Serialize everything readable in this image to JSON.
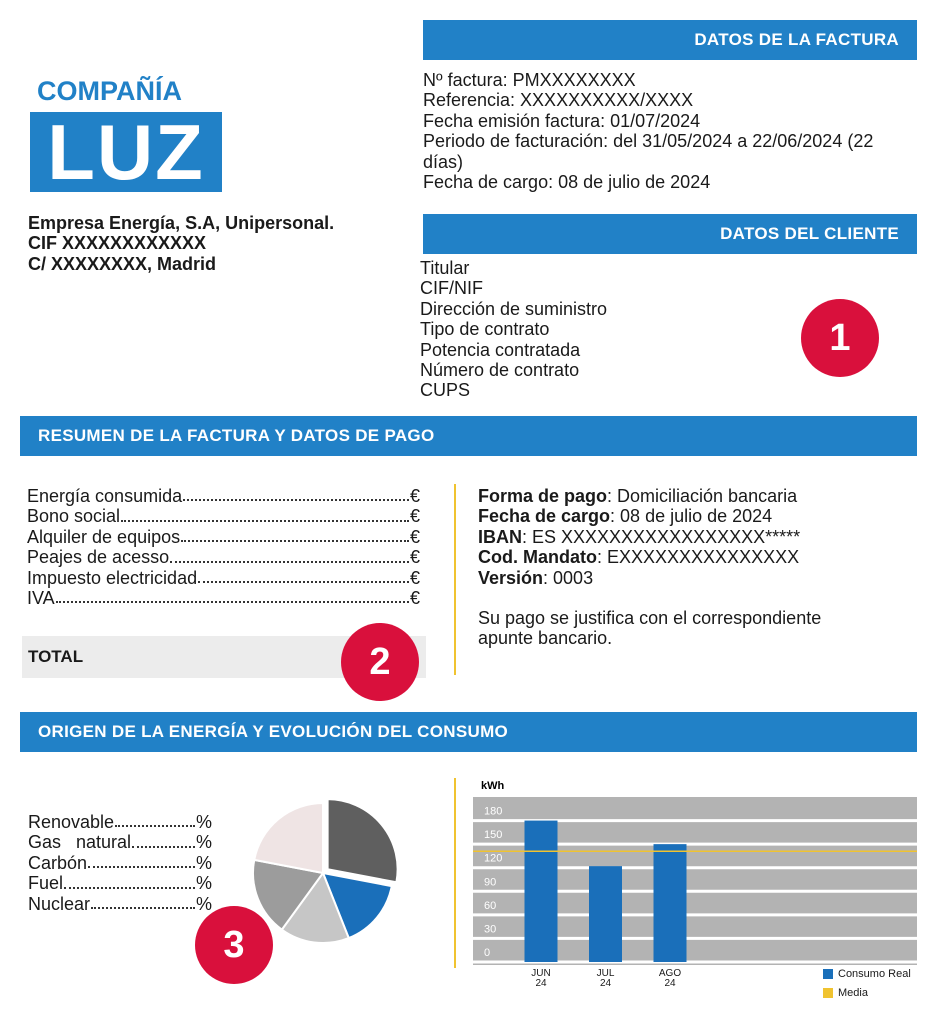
{
  "logo": {
    "company": "COMPAÑÍA",
    "brand": "LUZ"
  },
  "issuer": [
    "Empresa Energía, S.A, Unipersonal.",
    "CIF XXXXXXXXXXXX",
    "C/ XXXXXXXX, Madrid"
  ],
  "invoice": {
    "title": "DATOS DE LA FACTURA",
    "lines": [
      "Nº factura: PMXXXXXXXX",
      "Referencia: XXXXXXXXXX/XXXX",
      "Fecha emisión factura: 01/07/2024",
      "Periodo de facturación: del 31/05/2024 a 22/06/2024 (22 días)",
      "Fecha de cargo: 08 de julio de 2024"
    ]
  },
  "client": {
    "title": "DATOS DEL CLIENTE",
    "fields": [
      "Titular",
      "CIF/NIF",
      "Dirección de suministro",
      "Tipo de contrato",
      "Potencia contratada",
      "Número de contrato",
      "CUPS"
    ]
  },
  "markers": [
    "1",
    "2",
    "3"
  ],
  "summary": {
    "title": "RESUMEN DE LA FACTURA Y DATOS DE PAGO",
    "items": [
      {
        "label": "Energía consumida",
        "unit": "€"
      },
      {
        "label": "Bono social",
        "unit": "€"
      },
      {
        "label": "Alquiler de equipos",
        "unit": "€"
      },
      {
        "label": "Peajes de acesso",
        "unit": "€"
      },
      {
        "label": "Impuesto electricidad",
        "unit": "€"
      },
      {
        "label": "IVA",
        "unit": "€"
      }
    ],
    "total": "TOTAL",
    "payment": [
      {
        "label": "Forma de pago",
        "value": ": Domiciliación bancaria"
      },
      {
        "label": "Fecha de cargo",
        "value": ": 08 de julio de 2024"
      },
      {
        "label": "IBAN",
        "value": ": ES XXXXXXXXXXXXXXXXX*****"
      },
      {
        "label": "Cod. Mandato",
        "value": ": EXXXXXXXXXXXXXXX"
      },
      {
        "label": "Versión",
        "value": ": 0003"
      }
    ],
    "note": "Su pago se justifica con el correspondiente apunte bancario."
  },
  "origin": {
    "title": "ORIGEN DE LA ENERGÍA Y EVOLUCIÓN DEL CONSUMO"
  },
  "chart_data": [
    {
      "type": "bar",
      "y_label": "kWh",
      "categories": [
        "JUN\n24",
        "JUL\n24",
        "AGO\n24"
      ],
      "series": [
        {
          "name": "Consumo Real",
          "color": "#1a6fba",
          "values": [
            180,
            122,
            150
          ]
        }
      ],
      "reference_lines": [
        {
          "name": "Media",
          "color": "#f0c330",
          "value": 141
        }
      ],
      "ylim": [
        0,
        210
      ],
      "yticks": [
        0,
        30,
        60,
        90,
        120,
        150,
        180
      ],
      "grid": true,
      "legend": "bottom-right"
    },
    {
      "type": "pie",
      "values": [
        28,
        16,
        16,
        18,
        22
      ],
      "colors": [
        "#5f5f5f",
        "#1a6fba",
        "#c6c6c6",
        "#9c9c9c",
        "#efe4e4"
      ],
      "legend_items": [
        {
          "label": "Renovable",
          "unit": "%"
        },
        {
          "label": "Gas   natural",
          "unit": "%"
        },
        {
          "label": "Carbón",
          "unit": "%"
        },
        {
          "label": "Fuel",
          "unit": "%"
        },
        {
          "label": "Nuclear",
          "unit": "%"
        }
      ]
    }
  ]
}
